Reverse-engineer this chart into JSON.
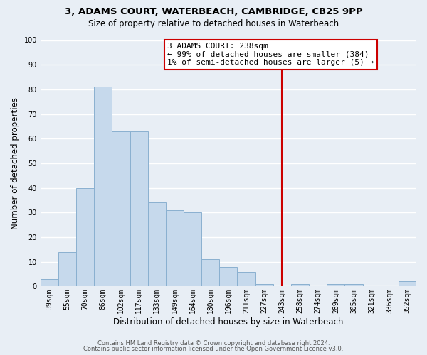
{
  "title_line1": "3, ADAMS COURT, WATERBEACH, CAMBRIDGE, CB25 9PP",
  "title_line2": "Size of property relative to detached houses in Waterbeach",
  "xlabel": "Distribution of detached houses by size in Waterbeach",
  "ylabel": "Number of detached properties",
  "bar_labels": [
    "39sqm",
    "55sqm",
    "70sqm",
    "86sqm",
    "102sqm",
    "117sqm",
    "133sqm",
    "149sqm",
    "164sqm",
    "180sqm",
    "196sqm",
    "211sqm",
    "227sqm",
    "243sqm",
    "258sqm",
    "274sqm",
    "289sqm",
    "305sqm",
    "321sqm",
    "336sqm",
    "352sqm"
  ],
  "bar_values": [
    3,
    14,
    40,
    81,
    63,
    63,
    34,
    31,
    30,
    11,
    8,
    6,
    1,
    0,
    1,
    0,
    1,
    1,
    0,
    0,
    2
  ],
  "bar_color": "#c6d9ec",
  "bar_edge_color": "#8ab0d0",
  "vline_x_index": 13,
  "vline_color": "#cc0000",
  "annotation_text_line1": "3 ADAMS COURT: 238sqm",
  "annotation_text_line2": "← 99% of detached houses are smaller (384)",
  "annotation_text_line3": "1% of semi-detached houses are larger (5) →",
  "ylim": [
    0,
    100
  ],
  "yticks": [
    0,
    10,
    20,
    30,
    40,
    50,
    60,
    70,
    80,
    90,
    100
  ],
  "footer_line1": "Contains HM Land Registry data © Crown copyright and database right 2024.",
  "footer_line2": "Contains public sector information licensed under the Open Government Licence v3.0.",
  "background_color": "#e8eef5",
  "plot_bg_color": "#e8eef5",
  "grid_color": "#ffffff",
  "title1_fontsize": 9.5,
  "title2_fontsize": 8.5,
  "xlabel_fontsize": 8.5,
  "ylabel_fontsize": 8.5,
  "tick_fontsize": 7,
  "footer_fontsize": 6,
  "ann_fontsize": 8
}
